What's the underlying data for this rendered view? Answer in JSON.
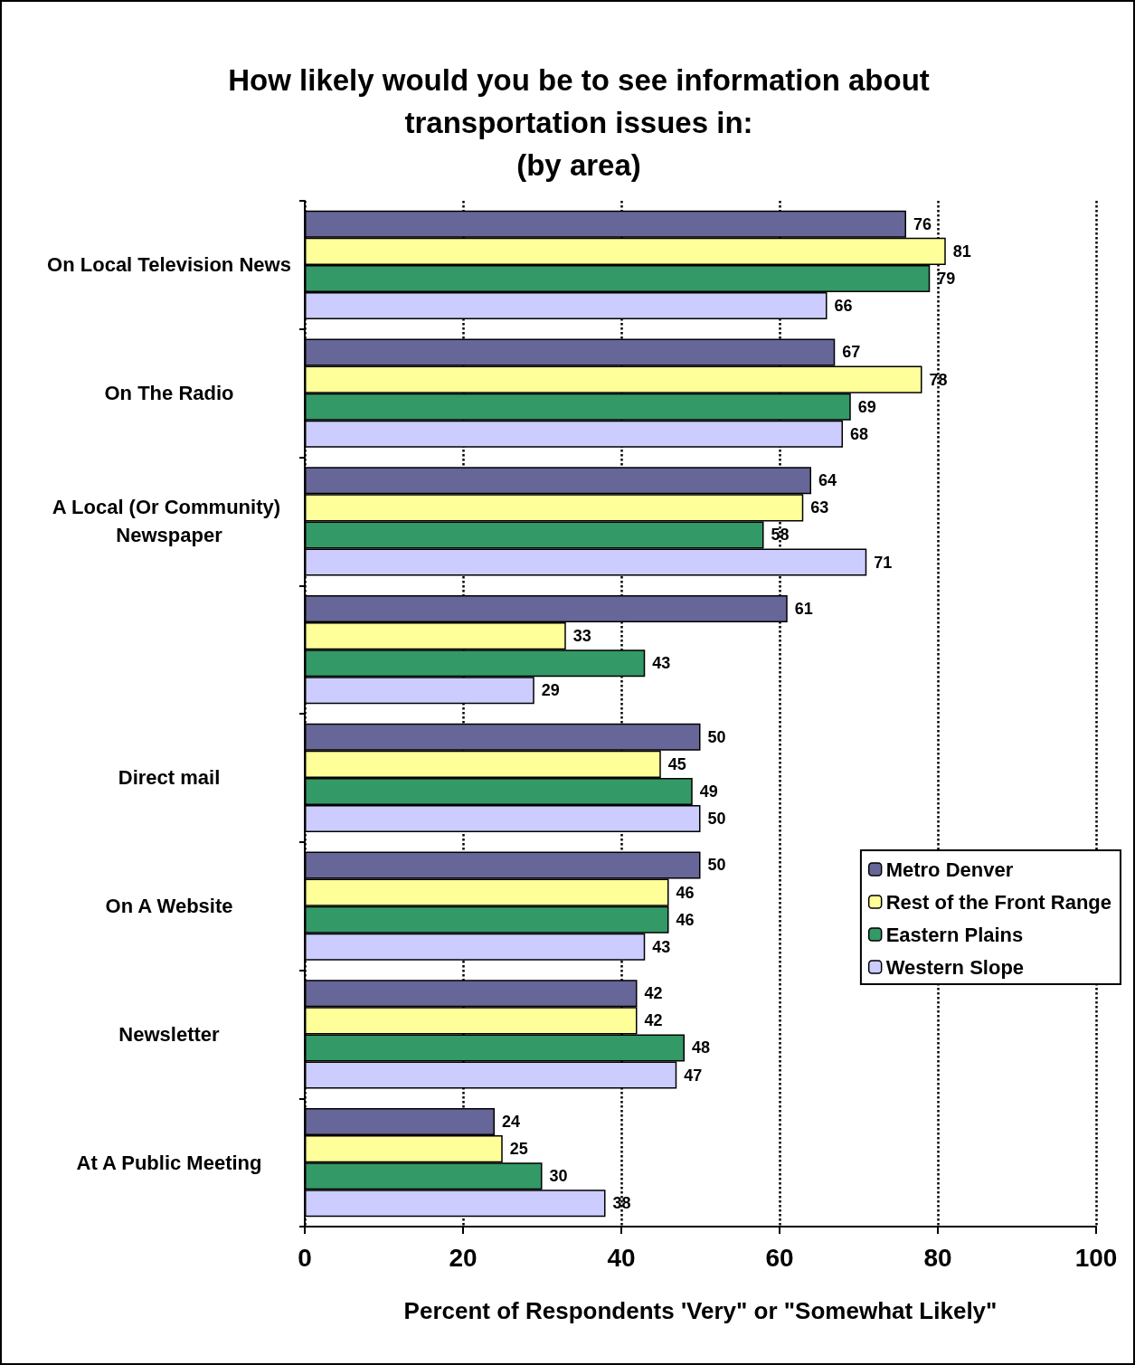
{
  "chart_data": {
    "type": "bar",
    "orientation": "horizontal",
    "title": "How likely would you be to see information about\ntransportation issues in:\n(by area)",
    "xlabel": "Percent of Respondents 'Very\" or \"Somewhat Likely\"",
    "categories": [
      "On Local Television News",
      "On The Radio",
      "A Local (Or Community) Newspaper",
      null,
      "Direct mail",
      "On A Website",
      "Newsletter",
      "At A Public Meeting"
    ],
    "series": [
      {
        "name": "Metro Denver",
        "color": "#666699",
        "values": [
          76,
          67,
          64,
          61,
          50,
          50,
          42,
          24
        ]
      },
      {
        "name": "Rest of the Front Range",
        "color": "#ffff99",
        "values": [
          81,
          78,
          63,
          33,
          45,
          46,
          42,
          25
        ]
      },
      {
        "name": "Eastern Plains",
        "color": "#339966",
        "values": [
          79,
          69,
          58,
          43,
          49,
          46,
          48,
          30
        ]
      },
      {
        "name": "Western Slope",
        "color": "#ccccff",
        "values": [
          66,
          68,
          71,
          29,
          50,
          43,
          47,
          38
        ]
      }
    ],
    "xlim": [
      0,
      100
    ],
    "xticks": [
      0,
      20,
      40,
      60,
      80,
      100
    ],
    "grid": "x",
    "legend": "right",
    "data_labels": true
  }
}
